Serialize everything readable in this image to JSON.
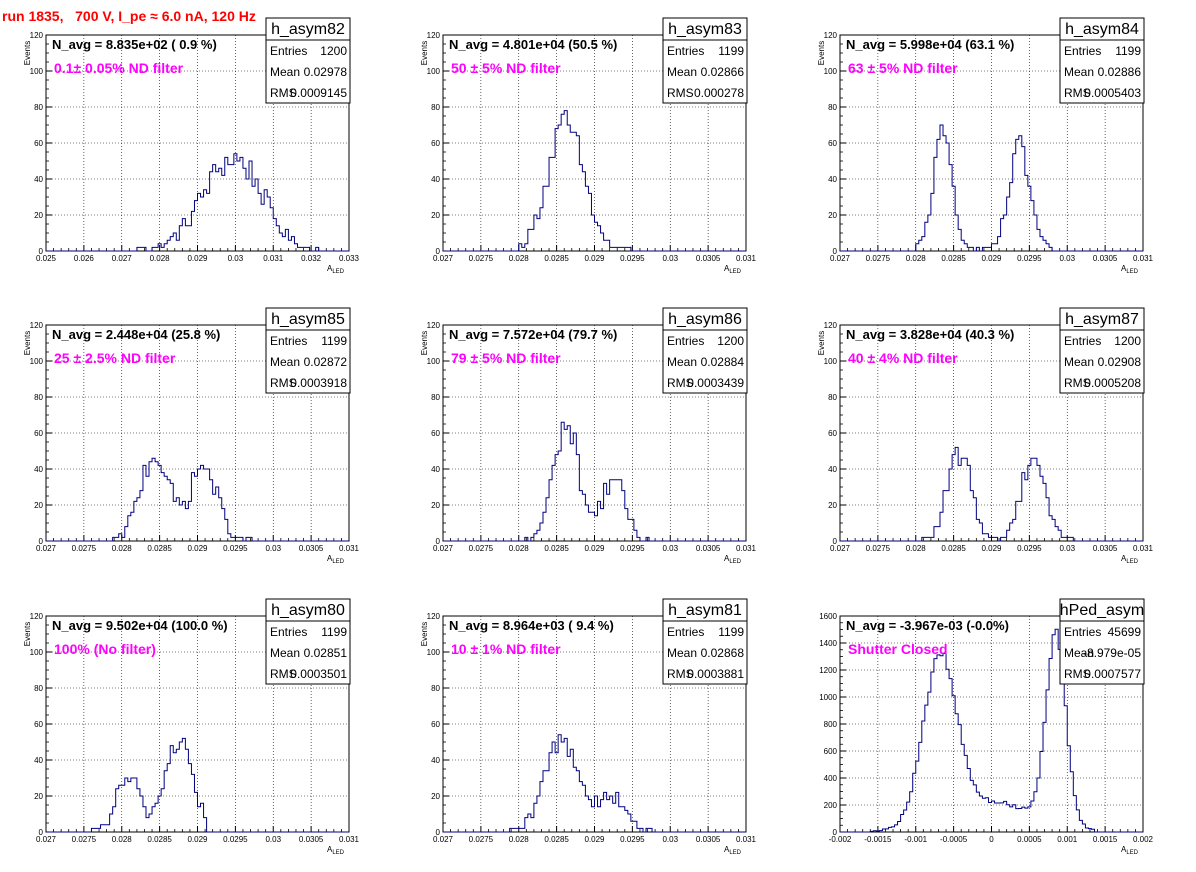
{
  "title": "run 1835,   700 V, I_pe ≈ 6.0 nA, 120 Hz",
  "colors": {
    "histogram_line": "#000080",
    "title": "#ff0000",
    "annotation": "#ff00ff",
    "grid": "#000000"
  },
  "chart_data": [
    {
      "type": "histogram",
      "name": "h_asym82",
      "grid": true,
      "annotation_navg": "N_avg = 8.835e+02 ( 0.9 %)",
      "annotation_filter": "0.1± 0.05% ND filter",
      "stats": [
        {
          "label": "Entries",
          "value": "1200"
        },
        {
          "label": "Mean",
          "value": "0.02978"
        },
        {
          "label": "RMS",
          "value": "0.0009145"
        }
      ],
      "xlabel": "A",
      "xlabel_sub": "LED",
      "ylabel": "Events",
      "xlim": [
        0.025,
        0.033
      ],
      "ylim": [
        0,
        120
      ],
      "xticks": [
        0.025,
        0.026,
        0.027,
        0.028,
        0.029,
        0.03,
        0.031,
        0.032,
        0.033
      ],
      "xtick_labels": [
        "0.025",
        "0.026",
        "0.027",
        "0.028",
        "0.029",
        "0.03",
        "0.031",
        "0.032",
        "0.033"
      ],
      "yticks": [
        0,
        20,
        40,
        60,
        80,
        100,
        120
      ],
      "ytick_labels": [
        "0",
        "20",
        "40",
        "60",
        "80",
        "100",
        "120"
      ],
      "peaks": [
        {
          "center": 0.02965,
          "sigma": 0.0007,
          "height": 38
        },
        {
          "center": 0.0304,
          "sigma": 0.0006,
          "height": 22
        }
      ],
      "x_range": [
        0.0274,
        0.0322
      ]
    },
    {
      "type": "histogram",
      "name": "h_asym83",
      "grid": true,
      "annotation_navg": "N_avg = 4.801e+04 (50.5 %)",
      "annotation_filter": "50 ± 5% ND filter",
      "stats": [
        {
          "label": "Entries",
          "value": "1199"
        },
        {
          "label": "Mean",
          "value": "0.02866"
        },
        {
          "label": "RMS",
          "value": "0.000278"
        }
      ],
      "xlabel": "A",
      "xlabel_sub": "LED",
      "ylabel": "Events",
      "xlim": [
        0.027,
        0.031
      ],
      "ylim": [
        0,
        120
      ],
      "xticks": [
        0.027,
        0.0275,
        0.028,
        0.0285,
        0.029,
        0.0295,
        0.03,
        0.0305,
        0.031
      ],
      "xtick_labels": [
        "0.027",
        "0.0275",
        "0.028",
        "0.0285",
        "0.029",
        "0.0295",
        "0.03",
        "0.0305",
        "0.031"
      ],
      "yticks": [
        0,
        20,
        40,
        60,
        80,
        100,
        120
      ],
      "ytick_labels": [
        "0",
        "20",
        "40",
        "60",
        "80",
        "100",
        "120"
      ],
      "peaks": [
        {
          "center": 0.02862,
          "sigma": 0.00024,
          "height": 70
        }
      ],
      "x_range": [
        0.028,
        0.0295
      ]
    },
    {
      "type": "histogram",
      "name": "h_asym84",
      "grid": true,
      "annotation_navg": "N_avg = 5.998e+04 (63.1 %)",
      "annotation_filter": "63 ± 5% ND filter",
      "stats": [
        {
          "label": "Entries",
          "value": "1199"
        },
        {
          "label": "Mean",
          "value": "0.02886"
        },
        {
          "label": "RMS",
          "value": "0.0005403"
        }
      ],
      "xlabel": "A",
      "xlabel_sub": "LED",
      "ylabel": "Events",
      "xlim": [
        0.027,
        0.031
      ],
      "ylim": [
        0,
        120
      ],
      "xticks": [
        0.027,
        0.0275,
        0.028,
        0.0285,
        0.029,
        0.0295,
        0.03,
        0.0305,
        0.031
      ],
      "xtick_labels": [
        "0.027",
        "0.0275",
        "0.028",
        "0.0285",
        "0.029",
        "0.0295",
        "0.03",
        "0.0305",
        "0.031"
      ],
      "yticks": [
        0,
        20,
        40,
        60,
        80,
        100,
        120
      ],
      "ytick_labels": [
        "0",
        "20",
        "40",
        "60",
        "80",
        "100",
        "120"
      ],
      "peaks": [
        {
          "center": 0.02836,
          "sigma": 0.00013,
          "height": 62
        },
        {
          "center": 0.02937,
          "sigma": 0.00014,
          "height": 56
        }
      ],
      "x_range": [
        0.028,
        0.0298
      ]
    },
    {
      "type": "histogram",
      "name": "h_asym85",
      "grid": true,
      "annotation_navg": "N_avg = 2.448e+04 (25.8 %)",
      "annotation_filter": "25 ± 2.5% ND filter",
      "stats": [
        {
          "label": "Entries",
          "value": "1199"
        },
        {
          "label": "Mean",
          "value": "0.02872"
        },
        {
          "label": "RMS",
          "value": "0.0003918"
        }
      ],
      "xlabel": "A",
      "xlabel_sub": "LED",
      "ylabel": "Events",
      "xlim": [
        0.027,
        0.031
      ],
      "ylim": [
        0,
        120
      ],
      "xticks": [
        0.027,
        0.0275,
        0.028,
        0.0285,
        0.029,
        0.0295,
        0.03,
        0.0305,
        0.031
      ],
      "xtick_labels": [
        "0.027",
        "0.0275",
        "0.028",
        "0.0285",
        "0.029",
        "0.0295",
        "0.03",
        "0.0305",
        "0.031"
      ],
      "yticks": [
        0,
        20,
        40,
        60,
        80,
        100,
        120
      ],
      "ytick_labels": [
        "0",
        "20",
        "40",
        "60",
        "80",
        "100",
        "120"
      ],
      "peaks": [
        {
          "center": 0.02843,
          "sigma": 0.00019,
          "height": 48
        },
        {
          "center": 0.02908,
          "sigma": 0.00018,
          "height": 42
        }
      ],
      "x_range": [
        0.0279,
        0.0297
      ]
    },
    {
      "type": "histogram",
      "name": "h_asym86",
      "grid": true,
      "annotation_navg": "N_avg = 7.572e+04 (79.7 %)",
      "annotation_filter": "79 ± 5% ND filter",
      "stats": [
        {
          "label": "Entries",
          "value": "1200"
        },
        {
          "label": "Mean",
          "value": "0.02884"
        },
        {
          "label": "RMS",
          "value": "0.0003439"
        }
      ],
      "xlabel": "A",
      "xlabel_sub": "LED",
      "ylabel": "Events",
      "xlim": [
        0.027,
        0.031
      ],
      "ylim": [
        0,
        120
      ],
      "xticks": [
        0.027,
        0.0275,
        0.028,
        0.0285,
        0.029,
        0.0295,
        0.03,
        0.0305,
        0.031
      ],
      "xtick_labels": [
        "0.027",
        "0.0275",
        "0.028",
        "0.0285",
        "0.029",
        "0.0295",
        "0.03",
        "0.0305",
        "0.031"
      ],
      "yticks": [
        0,
        20,
        40,
        60,
        80,
        100,
        120
      ],
      "ytick_labels": [
        "0",
        "20",
        "40",
        "60",
        "80",
        "100",
        "120"
      ],
      "peaks": [
        {
          "center": 0.02863,
          "sigma": 0.00017,
          "height": 65
        },
        {
          "center": 0.02925,
          "sigma": 0.00015,
          "height": 35
        }
      ],
      "x_range": [
        0.0281,
        0.0297
      ]
    },
    {
      "type": "histogram",
      "name": "h_asym87",
      "grid": true,
      "annotation_navg": "N_avg = 3.828e+04 (40.3 %)",
      "annotation_filter": "40 ± 4% ND filter",
      "stats": [
        {
          "label": "Entries",
          "value": "1200"
        },
        {
          "label": "Mean",
          "value": "0.02908"
        },
        {
          "label": "RMS",
          "value": "0.0005208"
        }
      ],
      "xlabel": "A",
      "xlabel_sub": "LED",
      "ylabel": "Events",
      "xlim": [
        0.027,
        0.031
      ],
      "ylim": [
        0,
        120
      ],
      "xticks": [
        0.027,
        0.0275,
        0.028,
        0.0285,
        0.029,
        0.0295,
        0.03,
        0.0305,
        0.031
      ],
      "xtick_labels": [
        "0.027",
        "0.0275",
        "0.028",
        "0.0285",
        "0.029",
        "0.0295",
        "0.03",
        "0.0305",
        "0.031"
      ],
      "yticks": [
        0,
        20,
        40,
        60,
        80,
        100,
        120
      ],
      "ytick_labels": [
        "0",
        "20",
        "40",
        "60",
        "80",
        "100",
        "120"
      ],
      "peaks": [
        {
          "center": 0.02858,
          "sigma": 0.00016,
          "height": 48
        },
        {
          "center": 0.02955,
          "sigma": 0.00016,
          "height": 48
        }
      ],
      "x_range": [
        0.0281,
        0.0301
      ]
    },
    {
      "type": "histogram",
      "name": "h_asym80",
      "grid": true,
      "annotation_navg": "N_avg = 9.502e+04 (100.0 %)",
      "annotation_filter": "100% (No filter)",
      "stats": [
        {
          "label": "Entries",
          "value": "1199"
        },
        {
          "label": "Mean",
          "value": "0.02851"
        },
        {
          "label": "RMS",
          "value": "0.0003501"
        }
      ],
      "xlabel": "A",
      "xlabel_sub": "LED",
      "ylabel": "Events",
      "xlim": [
        0.027,
        0.031
      ],
      "ylim": [
        0,
        120
      ],
      "xticks": [
        0.027,
        0.0275,
        0.028,
        0.0285,
        0.029,
        0.0295,
        0.03,
        0.0305,
        0.031
      ],
      "xtick_labels": [
        "0.027",
        "0.0275",
        "0.028",
        "0.0285",
        "0.029",
        "0.0295",
        "0.03",
        "0.0305",
        "0.031"
      ],
      "yticks": [
        0,
        20,
        40,
        60,
        80,
        100,
        120
      ],
      "ytick_labels": [
        "0",
        "20",
        "40",
        "60",
        "80",
        "100",
        "120"
      ],
      "peaks": [
        {
          "center": 0.02808,
          "sigma": 0.00015,
          "height": 30
        },
        {
          "center": 0.02875,
          "sigma": 0.00018,
          "height": 52
        }
      ],
      "x_range": [
        0.0276,
        0.0291
      ]
    },
    {
      "type": "histogram",
      "name": "h_asym81",
      "grid": true,
      "annotation_navg": "N_avg = 8.964e+03 ( 9.4 %)",
      "annotation_filter": "10 ± 1% ND filter",
      "stats": [
        {
          "label": "Entries",
          "value": "1199"
        },
        {
          "label": "Mean",
          "value": "0.02868"
        },
        {
          "label": "RMS",
          "value": "0.0003881"
        }
      ],
      "xlabel": "A",
      "xlabel_sub": "LED",
      "ylabel": "Events",
      "xlim": [
        0.027,
        0.031
      ],
      "ylim": [
        0,
        120
      ],
      "xticks": [
        0.027,
        0.0275,
        0.028,
        0.0285,
        0.029,
        0.0295,
        0.03,
        0.0305,
        0.031
      ],
      "xtick_labels": [
        "0.027",
        "0.0275",
        "0.028",
        "0.0285",
        "0.029",
        "0.0295",
        "0.03",
        "0.0305",
        "0.031"
      ],
      "yticks": [
        0,
        20,
        40,
        60,
        80,
        100,
        120
      ],
      "ytick_labels": [
        "0",
        "20",
        "40",
        "60",
        "80",
        "100",
        "120"
      ],
      "peaks": [
        {
          "center": 0.02857,
          "sigma": 0.00022,
          "height": 52
        },
        {
          "center": 0.02922,
          "sigma": 0.00018,
          "height": 20
        }
      ],
      "x_range": [
        0.0279,
        0.0298
      ]
    },
    {
      "type": "histogram",
      "name": "hPed_asym",
      "grid": true,
      "annotation_navg": "N_avg = -3.967e-03 (-0.0%)",
      "annotation_filter": "Shutter Closed",
      "stats": [
        {
          "label": "Entries",
          "value": "45699"
        },
        {
          "label": "Mean",
          "value": "-8.979e-05"
        },
        {
          "label": "RMS",
          "value": "0.0007577"
        }
      ],
      "xlabel": "A",
      "xlabel_sub": "LED",
      "ylabel": "",
      "xlim": [
        -0.002,
        0.002
      ],
      "ylim": [
        0,
        1600
      ],
      "xticks": [
        -0.002,
        -0.0015,
        -0.001,
        -0.0005,
        0,
        0.0005,
        0.001,
        0.0015,
        0.002
      ],
      "xtick_labels": [
        "-0.002",
        "-0.0015",
        "-0.001",
        "-0.0005",
        "0",
        "0.0005",
        "0.001",
        "0.0015",
        "0.002"
      ],
      "yticks": [
        0,
        200,
        400,
        600,
        800,
        1000,
        1200,
        1400,
        1600
      ],
      "ytick_labels": [
        "0",
        "200",
        "400",
        "600",
        "800",
        "1000",
        "1200",
        "1400",
        "1600"
      ],
      "peaks": [
        {
          "center": -0.00068,
          "sigma": 0.00022,
          "height": 1200
        },
        {
          "center": 0.00085,
          "sigma": 0.00013,
          "height": 1400
        },
        {
          "center": 0.0,
          "sigma": 0.0006,
          "height": 220
        }
      ],
      "x_range": [
        -0.0016,
        0.00135
      ]
    }
  ]
}
